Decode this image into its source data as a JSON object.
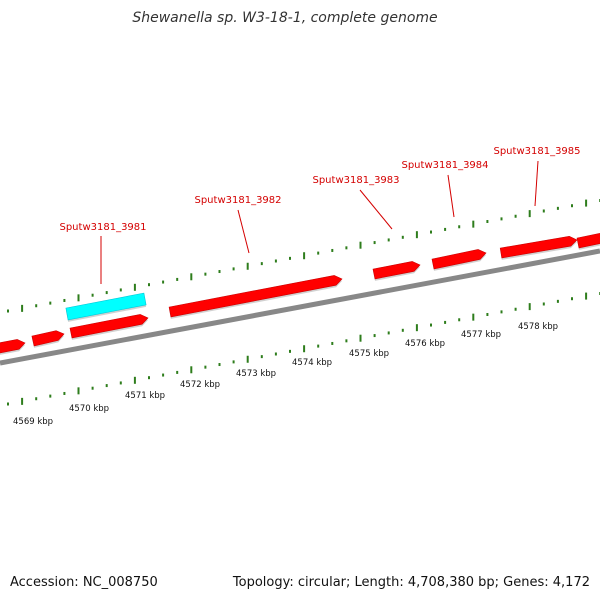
{
  "title": "Shewanella sp. W3-18-1, complete genome",
  "footer": {
    "accession": "Accession: NC_008750",
    "summary": "Topology: circular; Length: 4,708,380 bp; Genes: 4,172"
  },
  "colors": {
    "gene_forward": "#ff0000",
    "gene_highlight": "#00ffff",
    "backbone": "#888888",
    "tick": "#2e7d1c",
    "gene_label": "#d40000"
  },
  "kbp_labels": [
    "4569 kbp",
    "4570 kbp",
    "4571 kbp",
    "4572 kbp",
    "4573 kbp",
    "4574 kbp",
    "4575 kbp",
    "4576 kbp",
    "4577 kbp",
    "4578 kbp"
  ],
  "genes": [
    {
      "label": "",
      "highlight": false
    },
    {
      "label": "",
      "highlight": false
    },
    {
      "label": "",
      "highlight": false
    },
    {
      "label": "Sputw3181_3981",
      "highlight": true
    },
    {
      "label": "Sputw3181_3982",
      "highlight": false
    },
    {
      "label": "Sputw3181_3983",
      "highlight": false
    },
    {
      "label": "Sputw3181_3984",
      "highlight": false
    },
    {
      "label": "Sputw3181_3985",
      "highlight": false
    },
    {
      "label": "",
      "highlight": false
    }
  ]
}
